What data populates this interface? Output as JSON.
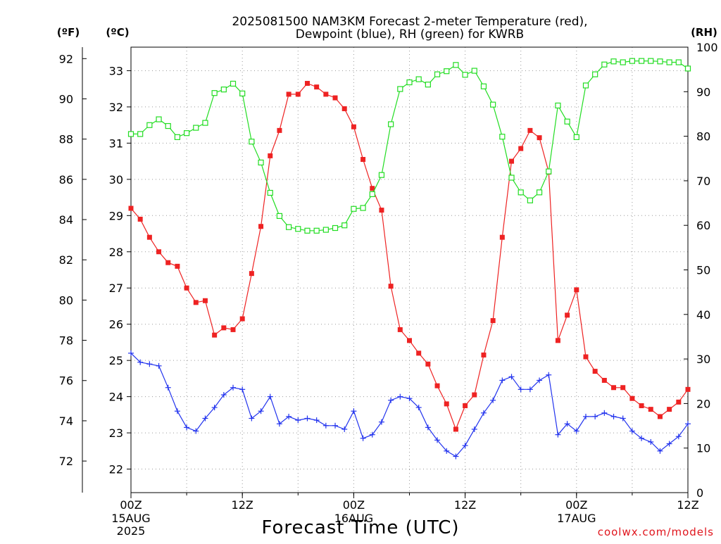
{
  "title": {
    "line1": "2025081500 NAM3KM Forecast 2-meter Temperature (red),",
    "line2": "Dewpoint (blue), RH (green) for KWRB"
  },
  "axes": {
    "left_outer_unit": "(ºF)",
    "left_inner_unit": "(ºC)",
    "right_unit": "(RH)",
    "xlabel": "Forecast Time (UTC)",
    "credit": "coolwx.com/models"
  },
  "chart_data": {
    "type": "line",
    "title": "2025081500 NAM3KM Forecast 2-meter Temperature (red), Dewpoint (blue), RH (green) for KWRB",
    "xlabel": "Forecast Time (UTC)",
    "x_unit": "forecast hour",
    "xlim": [
      0,
      60
    ],
    "x_ticks": [
      {
        "x": 0,
        "label": "00Z",
        "sub1": "15AUG",
        "sub2": "2025"
      },
      {
        "x": 12,
        "label": "12Z",
        "sub1": "",
        "sub2": ""
      },
      {
        "x": 24,
        "label": "00Z",
        "sub1": "16AUG",
        "sub2": ""
      },
      {
        "x": 36,
        "label": "12Z",
        "sub1": "",
        "sub2": ""
      },
      {
        "x": 48,
        "label": "00Z",
        "sub1": "17AUG",
        "sub2": ""
      },
      {
        "x": 60,
        "label": "12Z",
        "sub1": "",
        "sub2": ""
      }
    ],
    "y_celsius": {
      "label": "(ºC)",
      "ylim": [
        21.35,
        33.65
      ],
      "ticks": [
        22,
        23,
        24,
        25,
        26,
        27,
        28,
        29,
        30,
        31,
        32,
        33
      ]
    },
    "y_fahrenheit": {
      "label": "(ºF)",
      "ticks": [
        72,
        74,
        76,
        78,
        80,
        82,
        84,
        86,
        88,
        90,
        92
      ]
    },
    "y_rh": {
      "label": "(RH)",
      "ylim": [
        0,
        100
      ],
      "ticks": [
        0,
        10,
        20,
        30,
        40,
        50,
        60,
        70,
        80,
        90,
        100
      ]
    },
    "grid": true,
    "series": [
      {
        "name": "Temperature",
        "axis": "celsius",
        "color": "#ee2222",
        "marker": "filled-square",
        "values": [
          29.2,
          28.9,
          28.4,
          28.0,
          27.7,
          27.6,
          27.0,
          26.6,
          26.65,
          25.7,
          25.9,
          25.85,
          26.15,
          27.4,
          28.7,
          30.65,
          31.35,
          32.35,
          32.35,
          32.65,
          32.55,
          32.35,
          32.25,
          31.95,
          31.45,
          30.55,
          29.75,
          29.15,
          27.05,
          25.85,
          25.55,
          25.2,
          24.9,
          24.3,
          23.8,
          23.1,
          23.75,
          24.05,
          25.15,
          26.1,
          28.4,
          30.5,
          30.85,
          31.35,
          31.15,
          30.2,
          25.55,
          26.25,
          26.95,
          25.1,
          24.7,
          24.45,
          24.25,
          24.25,
          23.95,
          23.75,
          23.65,
          23.45,
          23.65,
          23.85,
          24.2
        ]
      },
      {
        "name": "Dewpoint",
        "axis": "celsius",
        "color": "#2233ee",
        "marker": "plus",
        "values": [
          25.2,
          24.95,
          24.9,
          24.85,
          24.25,
          23.6,
          23.15,
          23.05,
          23.4,
          23.7,
          24.05,
          24.25,
          24.2,
          23.4,
          23.6,
          24.0,
          23.25,
          23.45,
          23.35,
          23.4,
          23.35,
          23.2,
          23.2,
          23.1,
          23.6,
          22.85,
          22.95,
          23.3,
          23.9,
          24.0,
          23.95,
          23.7,
          23.15,
          22.8,
          22.5,
          22.35,
          22.65,
          23.1,
          23.55,
          23.9,
          24.45,
          24.55,
          24.2,
          24.2,
          24.45,
          24.6,
          22.95,
          23.25,
          23.05,
          23.45,
          23.45,
          23.55,
          23.45,
          23.4,
          23.05,
          22.85,
          22.75,
          22.5,
          22.7,
          22.9,
          23.25
        ]
      },
      {
        "name": "RH",
        "axis": "rh",
        "color": "#22dd22",
        "marker": "open-square",
        "values": [
          80.5,
          80.5,
          82.5,
          83.8,
          82.3,
          79.8,
          80.7,
          81.9,
          83.0,
          89.7,
          90.5,
          91.8,
          89.6,
          78.8,
          74.1,
          67.3,
          62.1,
          59.6,
          59.2,
          58.8,
          58.8,
          59.0,
          59.4,
          60.0,
          63.7,
          63.9,
          67.0,
          71.3,
          82.7,
          90.6,
          92.1,
          92.8,
          91.6,
          93.9,
          94.6,
          96.0,
          93.8,
          94.7,
          91.2,
          87.1,
          79.9,
          70.7,
          67.4,
          65.6,
          67.4,
          72.1,
          86.9,
          83.3,
          79.8,
          91.4,
          93.9,
          96.1,
          96.8,
          96.6,
          96.9,
          96.9,
          96.9,
          96.8,
          96.6,
          96.6,
          95.2
        ]
      }
    ]
  }
}
